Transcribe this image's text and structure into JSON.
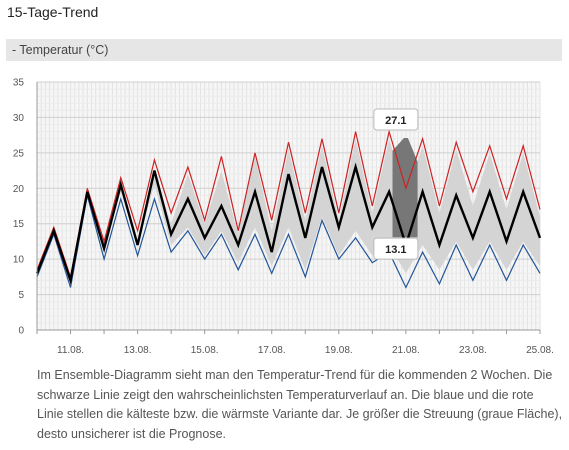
{
  "page": {
    "title": "15-Tage-Trend",
    "section_label": "- Temperatur (°C)",
    "description": "Im Ensemble-Diagramm sieht man den Temperatur-Trend für die kommenden 2 Wochen. Die schwarze Linie zeigt den wahrscheinlichsten Temperaturverlauf an. Die blaue und die rote Linie stellen die kälteste bzw. die wärmste Variante dar. Je größer die Streuung (graue Fläche), desto unsicherer ist die Prognose."
  },
  "chart_data": {
    "type": "line",
    "x_start": "10.08.",
    "x_step": "12 h",
    "x_ticks": [
      {
        "label": "11.08.",
        "x": 2
      },
      {
        "label": "13.08.",
        "x": 6
      },
      {
        "label": "15.08.",
        "x": 10
      },
      {
        "label": "17.08.",
        "x": 14
      },
      {
        "label": "19.08.",
        "x": 18
      },
      {
        "label": "21.08.",
        "x": 22
      },
      {
        "label": "23.08.",
        "x": 26
      },
      {
        "label": "25.08.",
        "x": 30
      }
    ],
    "ylim": [
      0,
      35
    ],
    "y_ticks": [
      0,
      5,
      10,
      15,
      20,
      25,
      30,
      35
    ],
    "grid": true,
    "series": [
      {
        "key": "max",
        "color": "#cc2222",
        "values": [
          8.5,
          14.5,
          7.5,
          20.0,
          12.5,
          21.5,
          14.0,
          24.0,
          16.5,
          23.0,
          15.5,
          24.5,
          14.0,
          25.0,
          15.5,
          26.5,
          16.5,
          27.0,
          16.5,
          28.0,
          17.5,
          28.0,
          20.0,
          27.0,
          17.5,
          26.5,
          19.5,
          26.0,
          18.5,
          26.0,
          17.0
        ]
      },
      {
        "key": "min",
        "color": "#225599",
        "values": [
          7.5,
          13.5,
          6.0,
          19.0,
          10.0,
          18.5,
          10.5,
          18.5,
          11.0,
          14.0,
          10.0,
          13.5,
          8.5,
          13.5,
          8.0,
          13.5,
          7.5,
          15.5,
          10.0,
          13.0,
          9.5,
          11.0,
          6.0,
          11.0,
          6.5,
          12.0,
          7.0,
          12.0,
          7.0,
          12.0,
          8.0
        ]
      },
      {
        "key": "likely",
        "color": "#000000",
        "values": [
          8.0,
          14.0,
          7.0,
          19.5,
          11.5,
          20.5,
          12.0,
          22.5,
          13.5,
          18.5,
          13.0,
          17.5,
          12.0,
          19.5,
          11.0,
          22.0,
          13.0,
          23.0,
          14.5,
          23.0,
          14.5,
          19.5,
          12.0,
          19.5,
          12.0,
          19.0,
          13.0,
          19.5,
          12.5,
          19.5,
          13.0
        ]
      },
      {
        "key": "spread_upper",
        "color": "#d4d4d4",
        "values": [
          8.0,
          14.0,
          7.0,
          19.5,
          11.5,
          20.5,
          12.5,
          22.5,
          15.0,
          22.0,
          15.0,
          22.5,
          13.5,
          24.5,
          14.0,
          25.5,
          15.5,
          26.0,
          15.5,
          27.0,
          16.5,
          27.0,
          18.5,
          26.0,
          16.5,
          25.5,
          17.5,
          25.0,
          17.0,
          25.0,
          16.0
        ]
      },
      {
        "key": "spread_lower",
        "color": "#d4d4d4",
        "values": [
          8.0,
          14.0,
          7.0,
          19.5,
          11.5,
          19.5,
          12.0,
          20.5,
          12.0,
          14.5,
          10.5,
          14.0,
          9.5,
          14.5,
          9.0,
          14.5,
          8.5,
          16.0,
          10.5,
          14.0,
          10.5,
          12.0,
          8.0,
          12.0,
          8.5,
          12.5,
          8.5,
          12.5,
          8.5,
          12.5,
          9.0
        ]
      }
    ],
    "selected_column": {
      "x_from": 21.2,
      "x_to": 22.7,
      "color": "#777777"
    },
    "annotations": [
      {
        "text": "27.1",
        "x": 22,
        "y": 27.1
      },
      {
        "text": "13.1",
        "x": 22,
        "y": 13.1
      }
    ]
  }
}
